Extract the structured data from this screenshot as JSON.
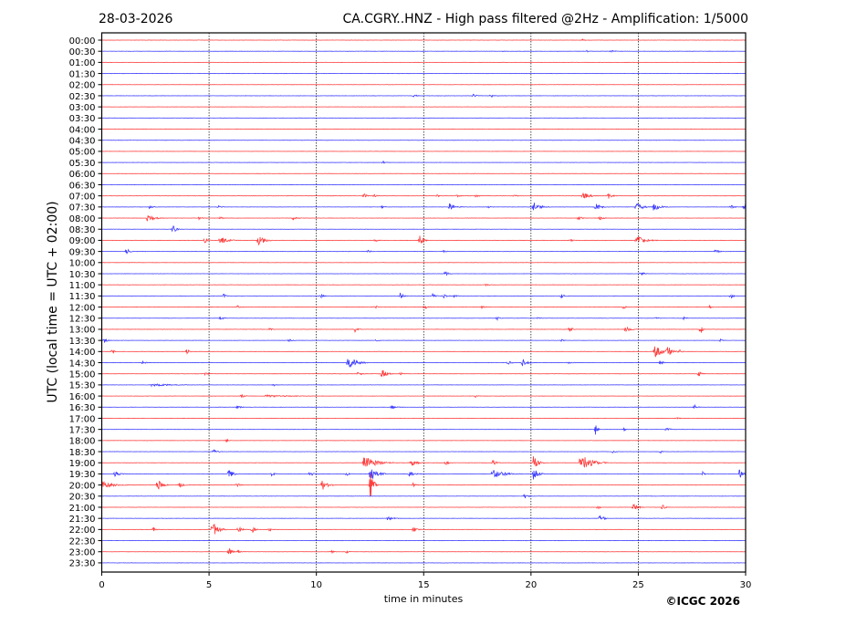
{
  "header": {
    "date": "28-03-2026",
    "title": "CA.CGRY..HNZ - High pass filtered @2Hz - Amplification: 1/5000"
  },
  "footer": {
    "copyright": "©ICGC 2026"
  },
  "chart_data": {
    "type": "line",
    "subtype": "helicorder",
    "xlabel": "time in minutes",
    "ylabel": "UTC (local time = UTC + 02:00)",
    "xlim": [
      0,
      30
    ],
    "xticks": [
      "0",
      "5",
      "10",
      "15",
      "20",
      "25",
      "30"
    ],
    "grid": "vertical dotted at x ticks",
    "colors": {
      "even_trace": "#ff0000",
      "odd_trace": "#0000ff",
      "grid": "#000000"
    },
    "event_format": "[minute, relative amplitude (trace spacing units), duration in minutes]",
    "traces": [
      {
        "label": "00:00",
        "events": [
          [
            22.4,
            0.1,
            0.2
          ]
        ]
      },
      {
        "label": "00:30",
        "events": [
          [
            18.7,
            0.08,
            0.2
          ],
          [
            22.6,
            0.1,
            0.2
          ],
          [
            23.7,
            0.12,
            0.4
          ]
        ]
      },
      {
        "label": "01:00",
        "events": []
      },
      {
        "label": "01:30",
        "events": []
      },
      {
        "label": "02:00",
        "events": []
      },
      {
        "label": "02:30",
        "events": [
          [
            14.5,
            0.15,
            0.4
          ],
          [
            17.3,
            0.18,
            0.3
          ],
          [
            18.1,
            0.2,
            0.4
          ]
        ]
      },
      {
        "label": "03:00",
        "events": []
      },
      {
        "label": "03:30",
        "events": []
      },
      {
        "label": "04:00",
        "events": []
      },
      {
        "label": "04:30",
        "events": []
      },
      {
        "label": "05:00",
        "events": []
      },
      {
        "label": "05:30",
        "events": [
          [
            13.1,
            0.2,
            0.1
          ]
        ]
      },
      {
        "label": "06:00",
        "events": []
      },
      {
        "label": "06:30",
        "events": []
      },
      {
        "label": "07:00",
        "events": [
          [
            12.2,
            0.25,
            0.3
          ],
          [
            12.7,
            0.15,
            0.3
          ],
          [
            15.6,
            0.12,
            0.3
          ],
          [
            16.5,
            0.12,
            0.5
          ],
          [
            17.4,
            0.15,
            0.3
          ],
          [
            19.2,
            0.12,
            0.3
          ],
          [
            22.4,
            0.4,
            0.6
          ],
          [
            23.6,
            0.3,
            0.3
          ]
        ]
      },
      {
        "label": "07:30",
        "events": [
          [
            2.2,
            0.15,
            0.4
          ],
          [
            5.4,
            0.15,
            0.3
          ],
          [
            13.0,
            0.2,
            0.3
          ],
          [
            16.2,
            0.35,
            0.6
          ],
          [
            18.0,
            0.12,
            0.3
          ],
          [
            20.1,
            0.5,
            0.7
          ],
          [
            23.0,
            0.35,
            0.5
          ],
          [
            24.9,
            0.45,
            0.6
          ],
          [
            25.7,
            0.4,
            0.6
          ],
          [
            29.3,
            0.2,
            0.3
          ],
          [
            29.9,
            0.3,
            0.3
          ]
        ]
      },
      {
        "label": "08:00",
        "events": [
          [
            2.1,
            0.3,
            0.9
          ],
          [
            4.5,
            0.15,
            0.3
          ],
          [
            5.5,
            0.15,
            0.3
          ],
          [
            8.9,
            0.25,
            0.3
          ],
          [
            22.2,
            0.25,
            0.3
          ],
          [
            23.2,
            0.2,
            0.3
          ]
        ]
      },
      {
        "label": "08:30",
        "events": [
          [
            3.3,
            0.45,
            0.3
          ]
        ]
      },
      {
        "label": "09:00",
        "events": [
          [
            4.8,
            0.3,
            0.2
          ],
          [
            5.5,
            0.35,
            0.8
          ],
          [
            7.3,
            0.6,
            0.5
          ],
          [
            12.7,
            0.2,
            0.3
          ],
          [
            14.8,
            0.5,
            0.3
          ],
          [
            21.8,
            0.2,
            0.3
          ],
          [
            24.9,
            0.45,
            0.9
          ]
        ]
      },
      {
        "label": "09:30",
        "events": [
          [
            1.15,
            0.35,
            0.2
          ],
          [
            12.4,
            0.15,
            0.3
          ],
          [
            15.9,
            0.15,
            0.3
          ],
          [
            28.6,
            0.3,
            0.2
          ]
        ]
      },
      {
        "label": "10:00",
        "events": []
      },
      {
        "label": "10:30",
        "events": [
          [
            16.0,
            0.35,
            0.2
          ],
          [
            25.1,
            0.3,
            0.2
          ]
        ]
      },
      {
        "label": "11:00",
        "events": [
          [
            17.9,
            0.12,
            0.2
          ]
        ]
      },
      {
        "label": "11:30",
        "events": [
          [
            5.65,
            0.25,
            0.2
          ],
          [
            10.2,
            0.2,
            0.2
          ],
          [
            13.9,
            0.3,
            0.3
          ],
          [
            15.4,
            0.25,
            0.2
          ],
          [
            15.9,
            0.3,
            0.2
          ],
          [
            16.4,
            0.15,
            0.2
          ],
          [
            21.4,
            0.25,
            0.3
          ],
          [
            29.3,
            0.25,
            0.2
          ]
        ]
      },
      {
        "label": "12:00",
        "events": [
          [
            6.3,
            0.2,
            0.2
          ],
          [
            12.7,
            0.3,
            0.1
          ],
          [
            15.0,
            0.35,
            0.2
          ],
          [
            17.7,
            0.2,
            0.3
          ],
          [
            24.3,
            0.15,
            0.3
          ],
          [
            28.3,
            0.2,
            0.3
          ]
        ]
      },
      {
        "label": "12:30",
        "events": [
          [
            5.5,
            0.2,
            0.3
          ],
          [
            18.4,
            0.2,
            0.2
          ],
          [
            20.3,
            0.15,
            0.2
          ],
          [
            25.8,
            0.15,
            0.2
          ],
          [
            27.1,
            0.15,
            0.2
          ]
        ]
      },
      {
        "label": "13:00",
        "events": [
          [
            7.8,
            0.15,
            0.2
          ],
          [
            11.8,
            0.25,
            0.2
          ],
          [
            21.8,
            0.3,
            0.2
          ],
          [
            24.4,
            0.35,
            0.4
          ],
          [
            27.9,
            0.5,
            0.1
          ]
        ]
      },
      {
        "label": "13:30",
        "events": [
          [
            0.1,
            0.3,
            0.2
          ],
          [
            8.7,
            0.15,
            0.5
          ],
          [
            12.8,
            0.15,
            0.2
          ],
          [
            21.4,
            0.15,
            0.2
          ],
          [
            28.8,
            0.15,
            0.2
          ]
        ]
      },
      {
        "label": "14:00",
        "events": [
          [
            0.47,
            0.3,
            0.1
          ],
          [
            3.95,
            0.25,
            0.2
          ],
          [
            25.75,
            0.7,
            0.6
          ],
          [
            26.35,
            0.6,
            0.4
          ],
          [
            26.9,
            0.25,
            0.2
          ]
        ]
      },
      {
        "label": "14:30",
        "events": [
          [
            1.9,
            0.2,
            0.2
          ],
          [
            11.45,
            0.7,
            0.8
          ],
          [
            18.9,
            0.2,
            0.3
          ],
          [
            19.6,
            0.45,
            0.4
          ],
          [
            21.7,
            0.15,
            0.4
          ],
          [
            26.0,
            0.25,
            0.2
          ]
        ]
      },
      {
        "label": "15:00",
        "events": [
          [
            4.85,
            0.25,
            0.2
          ],
          [
            11.9,
            0.15,
            0.5
          ],
          [
            13.05,
            0.5,
            0.4
          ],
          [
            13.9,
            0.2,
            0.2
          ],
          [
            27.8,
            0.35,
            0.2
          ]
        ]
      },
      {
        "label": "15:30",
        "events": [
          [
            2.3,
            0.12,
            2.7
          ],
          [
            8.0,
            0.12,
            0.3
          ]
        ]
      },
      {
        "label": "16:00",
        "events": [
          [
            6.5,
            0.25,
            0.2
          ],
          [
            7.6,
            0.1,
            3.2
          ],
          [
            17.4,
            0.15,
            0.2
          ]
        ]
      },
      {
        "label": "16:30",
        "events": [
          [
            6.3,
            0.2,
            0.3
          ],
          [
            13.5,
            0.2,
            0.5
          ],
          [
            27.6,
            0.25,
            0.2
          ]
        ]
      },
      {
        "label": "17:00",
        "events": [
          [
            26.8,
            0.12,
            0.2
          ]
        ]
      },
      {
        "label": "17:30",
        "events": [
          [
            23.0,
            0.55,
            0.1
          ],
          [
            24.3,
            0.25,
            0.1
          ],
          [
            26.3,
            0.25,
            0.3
          ]
        ]
      },
      {
        "label": "18:00",
        "events": [
          [
            5.8,
            0.2,
            0.1
          ]
        ]
      },
      {
        "label": "18:30",
        "events": [
          [
            5.2,
            0.2,
            0.4
          ],
          [
            23.8,
            0.2,
            0.2
          ],
          [
            26.0,
            0.2,
            0.2
          ]
        ]
      },
      {
        "label": "19:00",
        "events": [
          [
            12.2,
            0.7,
            1.3
          ],
          [
            14.4,
            0.4,
            0.5
          ],
          [
            16.0,
            0.3,
            0.2
          ],
          [
            18.2,
            0.3,
            0.3
          ],
          [
            20.1,
            0.7,
            0.4
          ],
          [
            22.3,
            0.9,
            1.1
          ]
        ]
      },
      {
        "label": "19:30",
        "events": [
          [
            0.6,
            0.3,
            0.5
          ],
          [
            5.9,
            0.5,
            0.4
          ],
          [
            7.9,
            0.2,
            0.3
          ],
          [
            9.7,
            0.25,
            0.4
          ],
          [
            11.4,
            0.2,
            0.2
          ],
          [
            12.5,
            0.9,
            0.6
          ],
          [
            14.3,
            0.3,
            0.5
          ],
          [
            18.2,
            0.4,
            1.3
          ],
          [
            20.1,
            0.55,
            0.4
          ],
          [
            28.0,
            0.2,
            0.2
          ],
          [
            29.7,
            0.5,
            0.3
          ]
        ]
      },
      {
        "label": "20:00",
        "events": [
          [
            0.0,
            0.35,
            1.2
          ],
          [
            2.6,
            0.55,
            0.4
          ],
          [
            3.6,
            0.25,
            0.4
          ],
          [
            6.3,
            0.2,
            0.3
          ],
          [
            10.25,
            0.55,
            0.5
          ],
          [
            12.5,
            1.3,
            0.3
          ],
          [
            14.5,
            0.25,
            0.2
          ]
        ]
      },
      {
        "label": "20:30",
        "events": [
          [
            19.7,
            0.3,
            0.2
          ]
        ]
      },
      {
        "label": "21:00",
        "events": [
          [
            23.1,
            0.2,
            0.2
          ],
          [
            24.75,
            0.4,
            0.4
          ],
          [
            26.1,
            0.35,
            0.2
          ]
        ]
      },
      {
        "label": "21:30",
        "events": [
          [
            13.3,
            0.15,
            0.9
          ],
          [
            23.2,
            0.4,
            0.3
          ]
        ]
      },
      {
        "label": "22:00",
        "events": [
          [
            2.4,
            0.2,
            0.2
          ],
          [
            5.15,
            0.8,
            0.5
          ],
          [
            6.35,
            0.3,
            0.3
          ],
          [
            7.0,
            0.35,
            0.2
          ],
          [
            7.8,
            0.2,
            0.2
          ],
          [
            14.5,
            0.3,
            0.3
          ]
        ]
      },
      {
        "label": "22:30",
        "events": []
      },
      {
        "label": "23:00",
        "events": [
          [
            5.9,
            0.5,
            0.2
          ],
          [
            6.35,
            0.2,
            0.2
          ],
          [
            10.7,
            0.15,
            0.2
          ],
          [
            11.4,
            0.15,
            0.2
          ]
        ]
      },
      {
        "label": "23:30",
        "events": []
      }
    ]
  }
}
